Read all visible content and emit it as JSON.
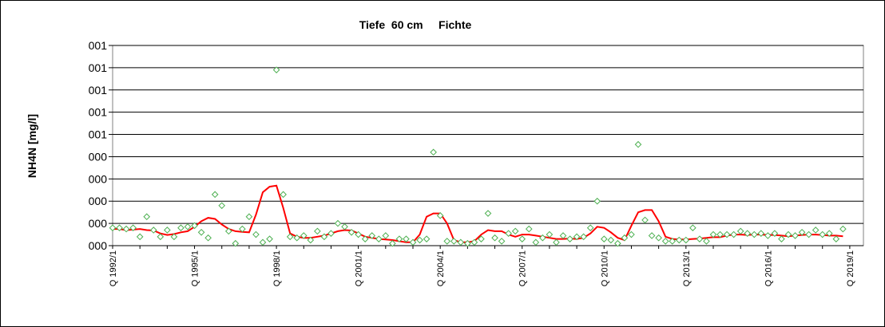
{
  "chart_data": {
    "type": "scatter",
    "title": "Tiefe  60 cm     Fichte",
    "xlabel": "",
    "ylabel": "NH4N [mg/l]",
    "xlim": [
      1992.0,
      2019.5
    ],
    "ylim": [
      0,
      9
    ],
    "y_tick_values": [
      0,
      1,
      2,
      3,
      4,
      5,
      6,
      7,
      8,
      9
    ],
    "y_tick_labels": [
      "000",
      "000",
      "000",
      "000",
      "000",
      "001",
      "001",
      "001",
      "001",
      "001"
    ],
    "x_tick_values": [
      1992.0,
      1995.0,
      1998.0,
      2001.0,
      2004.0,
      2007.0,
      2010.0,
      2013.0,
      2016.0,
      2019.0
    ],
    "x_tick_labels": [
      "Q 1992/1",
      "Q 1995/1",
      "Q 1998/1",
      "Q 2001/1",
      "Q 2004/1",
      "Q 2007/1",
      "Q 2010/1",
      "Q 2013/1",
      "Q 2016/1",
      "Q 2019/1"
    ],
    "grid": "horizontal",
    "legend": "none",
    "series": [
      {
        "kind": "markers",
        "marker": "diamond-open",
        "color": "#4caf50",
        "points": [
          [
            1992.0,
            0.8
          ],
          [
            1992.25,
            0.8
          ],
          [
            1992.5,
            0.75
          ],
          [
            1992.75,
            0.8
          ],
          [
            1993.0,
            0.4
          ],
          [
            1993.25,
            1.3
          ],
          [
            1993.5,
            0.7
          ],
          [
            1993.75,
            0.4
          ],
          [
            1994.0,
            0.7
          ],
          [
            1994.25,
            0.4
          ],
          [
            1994.5,
            0.8
          ],
          [
            1994.75,
            0.85
          ],
          [
            1995.0,
            0.9
          ],
          [
            1995.25,
            0.6
          ],
          [
            1995.5,
            0.35
          ],
          [
            1995.75,
            2.3
          ],
          [
            1996.0,
            1.8
          ],
          [
            1996.25,
            0.65
          ],
          [
            1996.5,
            0.1
          ],
          [
            1996.75,
            0.75
          ],
          [
            1997.0,
            1.3
          ],
          [
            1997.25,
            0.5
          ],
          [
            1997.5,
            0.15
          ],
          [
            1997.75,
            0.3
          ],
          [
            1998.0,
            7.9
          ],
          [
            1998.25,
            2.3
          ],
          [
            1998.5,
            0.4
          ],
          [
            1998.75,
            0.35
          ],
          [
            1999.0,
            0.45
          ],
          [
            1999.25,
            0.25
          ],
          [
            1999.5,
            0.65
          ],
          [
            1999.75,
            0.4
          ],
          [
            2000.0,
            0.55
          ],
          [
            2000.25,
            1.0
          ],
          [
            2000.5,
            0.85
          ],
          [
            2000.75,
            0.6
          ],
          [
            2001.0,
            0.5
          ],
          [
            2001.25,
            0.3
          ],
          [
            2001.5,
            0.45
          ],
          [
            2001.75,
            0.3
          ],
          [
            2002.0,
            0.45
          ],
          [
            2002.25,
            0.1
          ],
          [
            2002.5,
            0.3
          ],
          [
            2002.75,
            0.3
          ],
          [
            2003.0,
            0.15
          ],
          [
            2003.25,
            0.25
          ],
          [
            2003.5,
            0.3
          ],
          [
            2003.75,
            4.2
          ],
          [
            2004.0,
            1.35
          ],
          [
            2004.25,
            0.2
          ],
          [
            2004.5,
            0.2
          ],
          [
            2004.75,
            0.15
          ],
          [
            2005.0,
            0.1
          ],
          [
            2005.25,
            0.15
          ],
          [
            2005.5,
            0.3
          ],
          [
            2005.75,
            1.45
          ],
          [
            2006.0,
            0.35
          ],
          [
            2006.25,
            0.2
          ],
          [
            2006.5,
            0.55
          ],
          [
            2006.75,
            0.65
          ],
          [
            2007.0,
            0.3
          ],
          [
            2007.25,
            0.75
          ],
          [
            2007.5,
            0.15
          ],
          [
            2007.75,
            0.35
          ],
          [
            2008.0,
            0.5
          ],
          [
            2008.25,
            0.15
          ],
          [
            2008.5,
            0.45
          ],
          [
            2008.75,
            0.3
          ],
          [
            2009.0,
            0.4
          ],
          [
            2009.25,
            0.4
          ],
          [
            2009.5,
            0.8
          ],
          [
            2009.75,
            2.0
          ],
          [
            2010.0,
            0.3
          ],
          [
            2010.25,
            0.25
          ],
          [
            2010.5,
            0.1
          ],
          [
            2010.75,
            0.35
          ],
          [
            2011.0,
            0.5
          ],
          [
            2011.25,
            4.55
          ],
          [
            2011.5,
            1.15
          ],
          [
            2011.75,
            0.45
          ],
          [
            2012.0,
            0.35
          ],
          [
            2012.25,
            0.2
          ],
          [
            2012.5,
            0.2
          ],
          [
            2012.75,
            0.25
          ],
          [
            2013.0,
            0.25
          ],
          [
            2013.25,
            0.8
          ],
          [
            2013.5,
            0.3
          ],
          [
            2013.75,
            0.2
          ],
          [
            2014.0,
            0.5
          ],
          [
            2014.25,
            0.5
          ],
          [
            2014.5,
            0.5
          ],
          [
            2014.75,
            0.5
          ],
          [
            2015.0,
            0.65
          ],
          [
            2015.25,
            0.55
          ],
          [
            2015.5,
            0.5
          ],
          [
            2015.75,
            0.55
          ],
          [
            2016.0,
            0.45
          ],
          [
            2016.25,
            0.55
          ],
          [
            2016.5,
            0.3
          ],
          [
            2016.75,
            0.5
          ],
          [
            2017.0,
            0.45
          ],
          [
            2017.25,
            0.6
          ],
          [
            2017.5,
            0.5
          ],
          [
            2017.75,
            0.7
          ],
          [
            2018.0,
            0.5
          ],
          [
            2018.25,
            0.55
          ],
          [
            2018.5,
            0.3
          ],
          [
            2018.75,
            0.75
          ]
        ]
      },
      {
        "kind": "line",
        "color": "#ff0000",
        "points": [
          [
            1992.0,
            0.75
          ],
          [
            1992.25,
            0.75
          ],
          [
            1992.5,
            0.7
          ],
          [
            1992.75,
            0.72
          ],
          [
            1993.0,
            0.75
          ],
          [
            1993.25,
            0.7
          ],
          [
            1993.5,
            0.68
          ],
          [
            1993.75,
            0.55
          ],
          [
            1994.0,
            0.48
          ],
          [
            1994.25,
            0.52
          ],
          [
            1994.5,
            0.6
          ],
          [
            1994.75,
            0.65
          ],
          [
            1995.0,
            0.85
          ],
          [
            1995.25,
            1.1
          ],
          [
            1995.5,
            1.25
          ],
          [
            1995.75,
            1.2
          ],
          [
            1996.0,
            0.95
          ],
          [
            1996.25,
            0.75
          ],
          [
            1996.5,
            0.65
          ],
          [
            1996.75,
            0.62
          ],
          [
            1997.0,
            0.6
          ],
          [
            1997.25,
            1.4
          ],
          [
            1997.5,
            2.4
          ],
          [
            1997.75,
            2.65
          ],
          [
            1998.0,
            2.7
          ],
          [
            1998.25,
            1.7
          ],
          [
            1998.5,
            0.55
          ],
          [
            1998.75,
            0.4
          ],
          [
            1999.0,
            0.35
          ],
          [
            1999.25,
            0.35
          ],
          [
            1999.5,
            0.4
          ],
          [
            1999.75,
            0.45
          ],
          [
            2000.0,
            0.55
          ],
          [
            2000.25,
            0.65
          ],
          [
            2000.5,
            0.7
          ],
          [
            2000.75,
            0.68
          ],
          [
            2001.0,
            0.55
          ],
          [
            2001.25,
            0.4
          ],
          [
            2001.5,
            0.35
          ],
          [
            2001.75,
            0.3
          ],
          [
            2002.0,
            0.28
          ],
          [
            2002.25,
            0.25
          ],
          [
            2002.5,
            0.2
          ],
          [
            2002.75,
            0.15
          ],
          [
            2003.0,
            0.15
          ],
          [
            2003.25,
            0.5
          ],
          [
            2003.5,
            1.3
          ],
          [
            2003.75,
            1.45
          ],
          [
            2004.0,
            1.45
          ],
          [
            2004.25,
            1.0
          ],
          [
            2004.5,
            0.25
          ],
          [
            2004.75,
            0.15
          ],
          [
            2005.0,
            0.15
          ],
          [
            2005.25,
            0.2
          ],
          [
            2005.5,
            0.5
          ],
          [
            2005.75,
            0.7
          ],
          [
            2006.0,
            0.65
          ],
          [
            2006.25,
            0.65
          ],
          [
            2006.5,
            0.5
          ],
          [
            2006.75,
            0.4
          ],
          [
            2007.0,
            0.5
          ],
          [
            2007.25,
            0.5
          ],
          [
            2007.5,
            0.45
          ],
          [
            2007.75,
            0.4
          ],
          [
            2008.0,
            0.35
          ],
          [
            2008.25,
            0.3
          ],
          [
            2008.5,
            0.3
          ],
          [
            2008.75,
            0.32
          ],
          [
            2009.0,
            0.3
          ],
          [
            2009.25,
            0.35
          ],
          [
            2009.5,
            0.55
          ],
          [
            2009.75,
            0.85
          ],
          [
            2010.0,
            0.8
          ],
          [
            2010.25,
            0.6
          ],
          [
            2010.5,
            0.35
          ],
          [
            2010.75,
            0.25
          ],
          [
            2011.0,
            0.9
          ],
          [
            2011.25,
            1.5
          ],
          [
            2011.5,
            1.6
          ],
          [
            2011.75,
            1.6
          ],
          [
            2012.0,
            1.1
          ],
          [
            2012.25,
            0.4
          ],
          [
            2012.5,
            0.3
          ],
          [
            2012.75,
            0.28
          ],
          [
            2013.0,
            0.28
          ],
          [
            2013.25,
            0.3
          ],
          [
            2013.5,
            0.32
          ],
          [
            2013.75,
            0.35
          ],
          [
            2014.0,
            0.38
          ],
          [
            2014.25,
            0.38
          ],
          [
            2014.5,
            0.45
          ],
          [
            2014.75,
            0.5
          ],
          [
            2015.0,
            0.5
          ],
          [
            2015.25,
            0.48
          ],
          [
            2015.5,
            0.5
          ],
          [
            2015.75,
            0.5
          ],
          [
            2016.0,
            0.48
          ],
          [
            2016.25,
            0.48
          ],
          [
            2016.5,
            0.45
          ],
          [
            2016.75,
            0.42
          ],
          [
            2017.0,
            0.45
          ],
          [
            2017.25,
            0.48
          ],
          [
            2017.5,
            0.5
          ],
          [
            2017.75,
            0.5
          ],
          [
            2018.0,
            0.48
          ],
          [
            2018.25,
            0.45
          ],
          [
            2018.5,
            0.45
          ],
          [
            2018.75,
            0.42
          ]
        ]
      }
    ]
  }
}
